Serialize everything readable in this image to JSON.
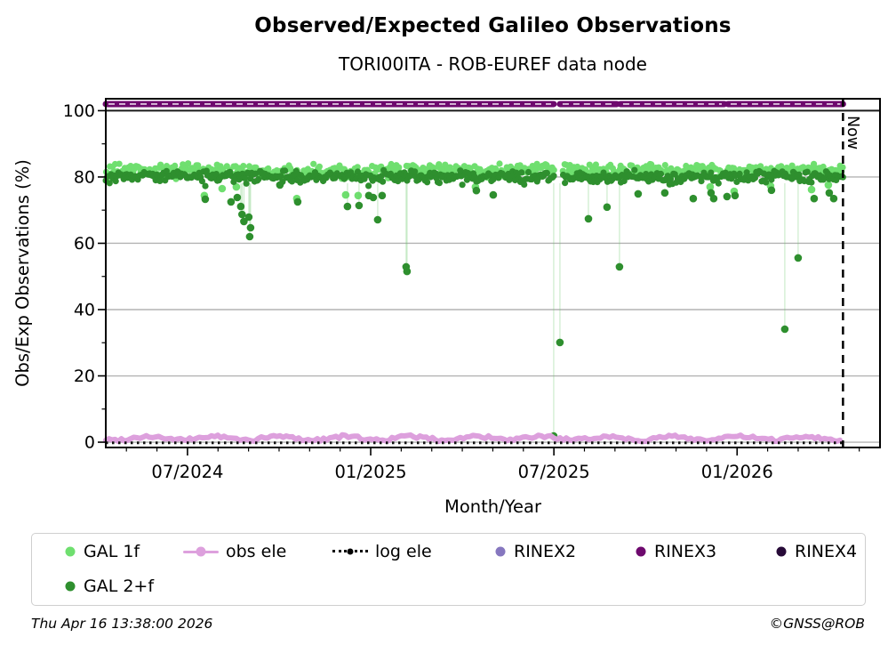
{
  "footer": {
    "timestamp": "Thu Apr 16 13:38:00 2026",
    "copyright": "©GNSS@ROB"
  },
  "legend": {
    "items": [
      {
        "label": "GAL 1f",
        "marker": "dot",
        "color": "#6fdf6f"
      },
      {
        "label": "GAL 2+f",
        "marker": "dot",
        "color": "#2e8f2e"
      },
      {
        "label": "obs ele",
        "marker": "line-dot",
        "color": "#dda0dd"
      },
      {
        "label": "log ele",
        "marker": "dotted-line",
        "color": "#000000"
      },
      {
        "label": "RINEX2",
        "marker": "dot",
        "color": "#8677bf"
      },
      {
        "label": "RINEX3",
        "marker": "dot",
        "color": "#6e096e"
      },
      {
        "label": "RINEX4",
        "marker": "dot",
        "color": "#270a38"
      }
    ]
  },
  "chart_data": {
    "type": "scatter",
    "title": "Observed/Expected Galileo Observations",
    "subtitle": "TORI00ITA - ROB-EUREF data node",
    "xlabel": "Month/Year",
    "ylabel": "Obs/Exp Observations (%)",
    "xlim": [
      2024.277,
      2026.39
    ],
    "ylim": [
      -1.6,
      103.6
    ],
    "x_major_ticks": [
      {
        "t": 2024.5,
        "label": "07/2024"
      },
      {
        "t": 2025.0,
        "label": "01/2025"
      },
      {
        "t": 2025.5,
        "label": "07/2025"
      },
      {
        "t": 2026.0,
        "label": "01/2026"
      }
    ],
    "yticks": [
      0,
      20,
      40,
      60,
      80,
      100
    ],
    "y_minor_ticks": [
      10,
      30,
      50,
      70,
      90
    ],
    "grid": "horizontal",
    "grid_color": "#b3b3b3",
    "expected_ref": {
      "y": 100,
      "color": "#1a1a1a"
    },
    "now": {
      "t": 2026.289,
      "label": "Now"
    },
    "series": [
      {
        "name": "GAL 1f",
        "kind": "band",
        "color": "#6fdf6f",
        "connector_color": "rgba(120,215,120,0.32)",
        "center": 82.0,
        "jitter": 1.5,
        "range": [
          2024.277,
          2026.289
        ],
        "gaps": [
          [
            2025.4995,
            2025.5235
          ]
        ],
        "outliers": [
          [
            2024.5461,
            74.4
          ],
          [
            2024.5946,
            76.5
          ],
          [
            2024.6334,
            77.0
          ],
          [
            2024.7984,
            73.5
          ],
          [
            2024.9318,
            74.6
          ],
          [
            2024.9658,
            74.4
          ],
          [
            2025.286,
            77.0
          ],
          [
            2025.9264,
            77.0
          ],
          [
            2025.9919,
            75.7
          ],
          [
            2026.0914,
            77.3
          ],
          [
            2026.2031,
            76.2
          ],
          [
            2026.2491,
            77.6
          ]
        ]
      },
      {
        "name": "GAL 2+f",
        "kind": "band",
        "color": "#2e8f2e",
        "connector_color": "rgba(110,200,110,0.35)",
        "center": 80.1,
        "jitter": 1.4,
        "range": [
          2024.277,
          2026.289
        ],
        "gaps": [
          [
            2025.4995,
            2025.5235
          ]
        ],
        "outliers": [
          [
            2024.5485,
            73.3
          ],
          [
            2024.6189,
            72.5
          ],
          [
            2024.6359,
            73.8
          ],
          [
            2024.6456,
            71.1
          ],
          [
            2024.649,
            68.7
          ],
          [
            2024.654,
            66.6
          ],
          [
            2024.6674,
            67.9
          ],
          [
            2024.6722,
            64.7
          ],
          [
            2024.6698,
            62.0
          ],
          [
            2024.7523,
            77.6
          ],
          [
            2024.8008,
            72.5
          ],
          [
            2024.9367,
            71.1
          ],
          [
            2024.9682,
            71.4
          ],
          [
            2024.9949,
            74.4
          ],
          [
            2025.007,
            73.8
          ],
          [
            2025.0192,
            67.1
          ],
          [
            2025.0313,
            74.4
          ],
          [
            2025.0967,
            52.9
          ],
          [
            2025.0992,
            51.5
          ],
          [
            2025.2884,
            75.9
          ],
          [
            2025.3345,
            74.6
          ],
          [
            2025.4995,
            1.9
          ],
          [
            2025.5165,
            30.1
          ],
          [
            2025.5942,
            67.4
          ],
          [
            2025.6451,
            70.9
          ],
          [
            2025.679,
            52.9
          ],
          [
            2025.73,
            74.9
          ],
          [
            2025.8027,
            75.2
          ],
          [
            2025.8803,
            73.5
          ],
          [
            2025.9289,
            75.2
          ],
          [
            2025.9361,
            73.5
          ],
          [
            2025.9725,
            74.1
          ],
          [
            2025.9944,
            74.4
          ],
          [
            2026.0938,
            76.0
          ],
          [
            2026.1302,
            34.1
          ],
          [
            2026.1666,
            55.6
          ],
          [
            2026.2103,
            73.5
          ],
          [
            2026.2515,
            75.2
          ],
          [
            2026.2636,
            73.5
          ]
        ]
      },
      {
        "name": "obs ele",
        "kind": "wiggle",
        "color": "#dda0dd",
        "center": 1.2,
        "amp": 1.0,
        "range": [
          2024.277,
          2026.289
        ]
      },
      {
        "name": "log ele",
        "kind": "dotted",
        "color": "#111111",
        "y": -0.2,
        "range": [
          2024.277,
          2026.289
        ]
      },
      {
        "name": "RINEX3",
        "kind": "line",
        "color": "#6e096e",
        "y": 102,
        "overlay_dash_color": "#ffffff",
        "segments": [
          [
            2024.277,
            2025.4995
          ],
          [
            2025.5165,
            2025.6718
          ],
          [
            2025.6815,
            2025.9653
          ],
          [
            2025.975,
            2026.289
          ]
        ]
      },
      {
        "name": "RINEX2",
        "kind": "legend-only",
        "color": "#8677bf"
      },
      {
        "name": "RINEX4",
        "kind": "legend-only",
        "color": "#270a38"
      }
    ]
  }
}
